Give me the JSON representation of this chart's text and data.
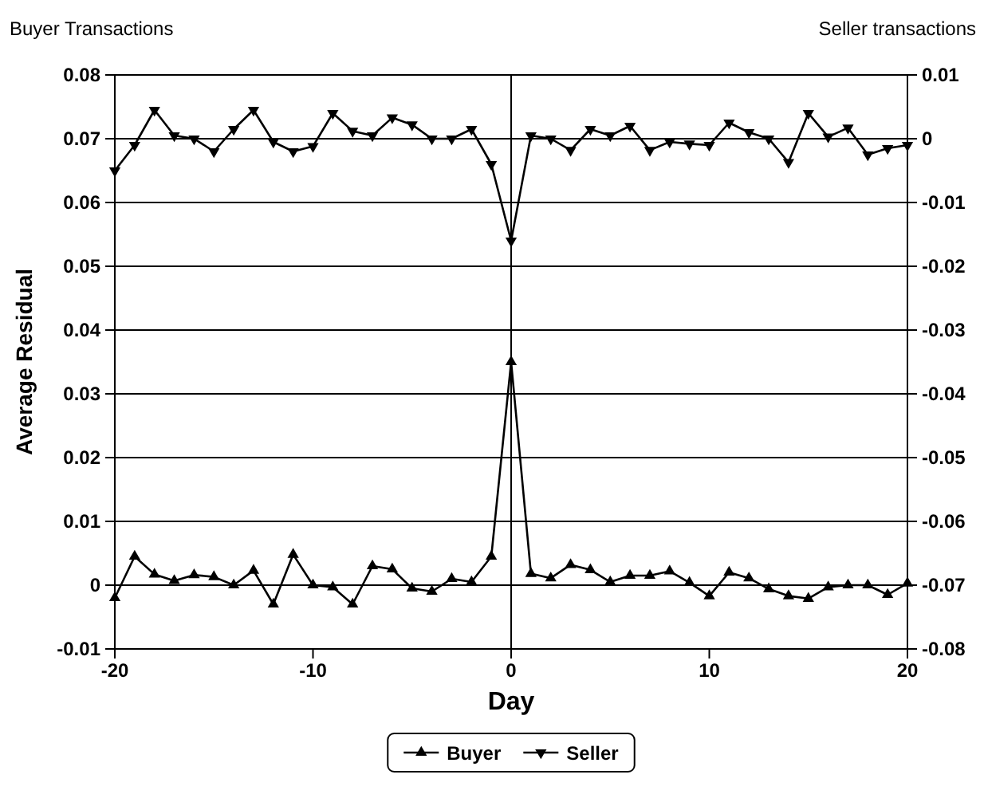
{
  "chart_data": {
    "type": "line",
    "xlabel": "Day",
    "ylabel": "Average Residual",
    "annotations": [
      "Buyer Transactions",
      "Seller transactions"
    ],
    "x": [
      -20,
      -19,
      -18,
      -17,
      -16,
      -15,
      -14,
      -13,
      -12,
      -11,
      -10,
      -9,
      -8,
      -7,
      -6,
      -5,
      -4,
      -3,
      -2,
      -1,
      0,
      1,
      2,
      3,
      4,
      5,
      6,
      7,
      8,
      9,
      10,
      11,
      12,
      13,
      14,
      15,
      16,
      17,
      18,
      19,
      20
    ],
    "series": [
      {
        "name": "Buyer",
        "color": "#000000",
        "marker": "triangle",
        "values": [
          -0.002,
          0.0045,
          0.0017,
          0.0007,
          0.0016,
          0.0013,
          0,
          0.0023,
          -0.003,
          0.0048,
          0,
          -0.0003,
          -0.003,
          0.003,
          0.0025,
          -0.0005,
          -0.001,
          0.001,
          0.0005,
          0.0045,
          0.035,
          0.0018,
          0.0011,
          0.0032,
          0.0024,
          0.0005,
          0.0015,
          0.0015,
          0.0022,
          0.0004,
          -0.0017,
          0.002,
          0.0011,
          -0.0006,
          -0.0017,
          -0.0021,
          -0.0003,
          0,
          0,
          -0.0015,
          0.0003
        ]
      },
      {
        "name": "Seller",
        "color": "#000000",
        "marker": "triangle-down",
        "axis": "y2",
        "values": [
          -0.005,
          -0.001,
          0.0045,
          0.0005,
          0,
          -0.002,
          0.0015,
          0.0045,
          -0.0005,
          -0.002,
          -0.0012,
          0.004,
          0.0012,
          0.0005,
          0.0033,
          0.0022,
          0,
          0,
          0.0015,
          -0.004,
          -0.016,
          0.0005,
          0,
          -0.0018,
          0.0015,
          0.0005,
          0.002,
          -0.0018,
          -0.0005,
          -0.0008,
          -0.001,
          0.0025,
          0.001,
          0,
          -0.0037,
          0.004,
          0.0003,
          0.0017,
          -0.0025,
          -0.0015,
          -0.001
        ]
      }
    ],
    "xlim": [
      -20,
      20
    ],
    "xticks": [
      -20,
      -10,
      0,
      10,
      20
    ],
    "ylim": [
      -0.01,
      0.08
    ],
    "yticks": [
      -0.01,
      0,
      0.01,
      0.02,
      0.03,
      0.04,
      0.05,
      0.06,
      0.07,
      0.08
    ],
    "y2lim": [
      -0.08,
      0.01
    ],
    "y2ticks": [
      -0.08,
      -0.07,
      -0.06,
      -0.05,
      -0.04,
      -0.03,
      -0.02,
      -0.01,
      0,
      0.01
    ],
    "ref_lines": [
      {
        "axis": "x",
        "value": 0,
        "color": "#000000"
      }
    ],
    "grid": "y",
    "legend": "bottom",
    "line_style": "solid"
  }
}
